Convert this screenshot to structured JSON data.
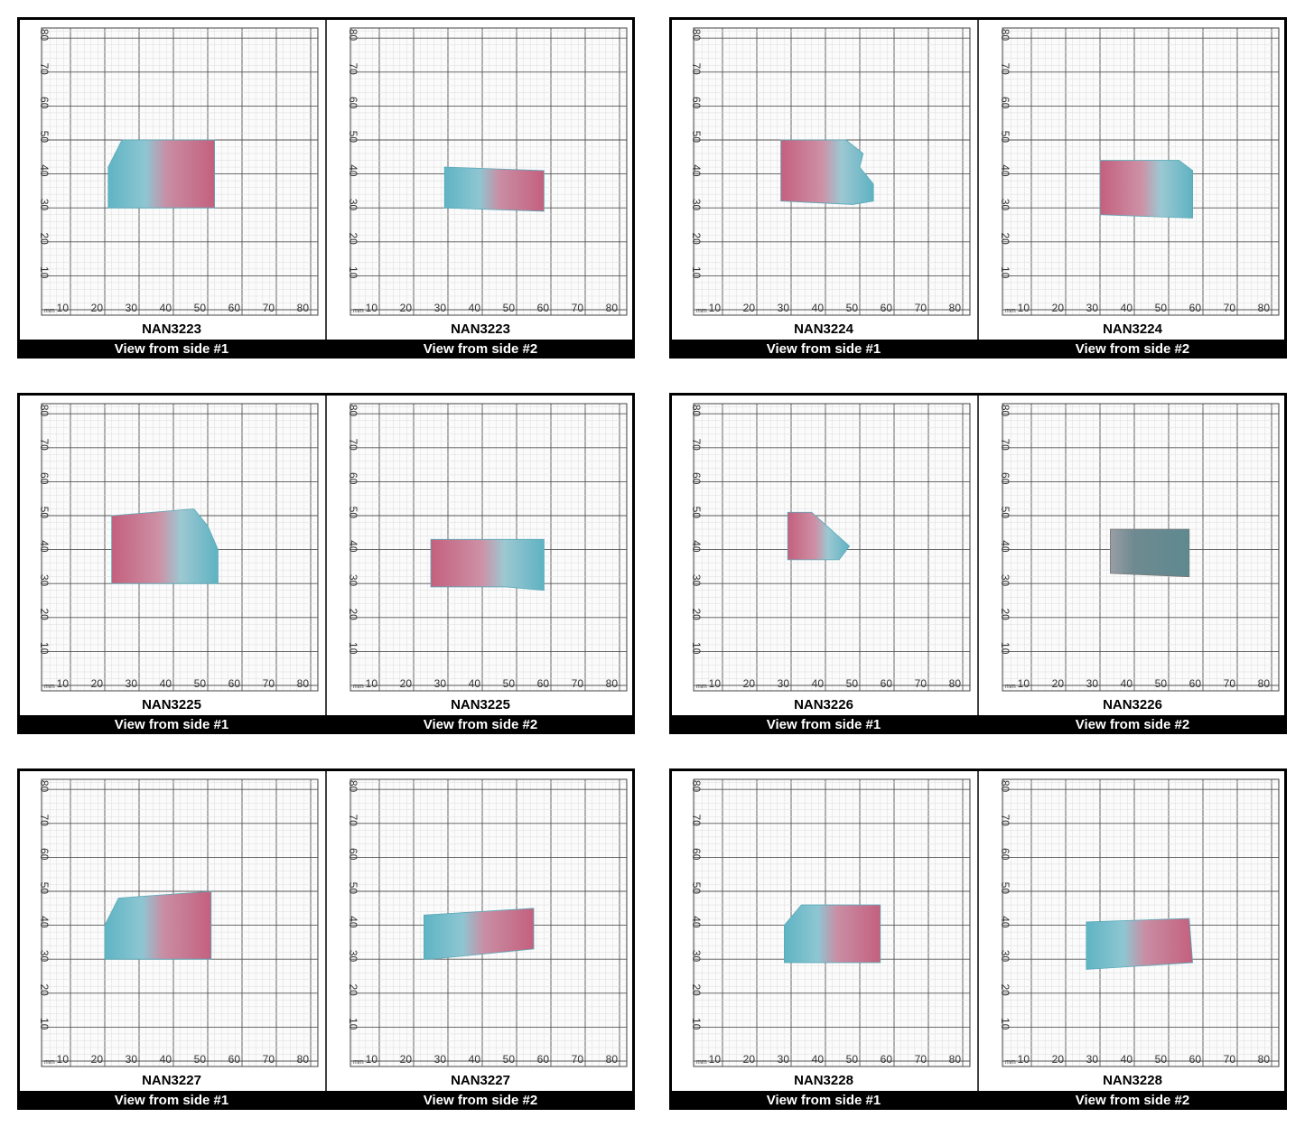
{
  "scale": {
    "unit": "mm",
    "x_ticks": [
      10,
      20,
      30,
      40,
      50,
      60,
      70,
      80
    ],
    "y_ticks": [
      10,
      20,
      30,
      40,
      50,
      60,
      70,
      80
    ]
  },
  "panels": [
    {
      "name": "NAN3223",
      "view": "View from side #1"
    },
    {
      "name": "NAN3223",
      "view": "View from side #2"
    },
    {
      "name": "NAN3224",
      "view": "View from side #1"
    },
    {
      "name": "NAN3224",
      "view": "View from side #2"
    },
    {
      "name": "NAN3225",
      "view": "View from side #1"
    },
    {
      "name": "NAN3225",
      "view": "View from side #2"
    },
    {
      "name": "NAN3226",
      "view": "View from side #1"
    },
    {
      "name": "NAN3226",
      "view": "View from side #2"
    },
    {
      "name": "NAN3227",
      "view": "View from side #1"
    },
    {
      "name": "NAN3227",
      "view": "View from side #2"
    },
    {
      "name": "NAN3228",
      "view": "View from side #1"
    },
    {
      "name": "NAN3228",
      "view": "View from side #2"
    }
  ]
}
